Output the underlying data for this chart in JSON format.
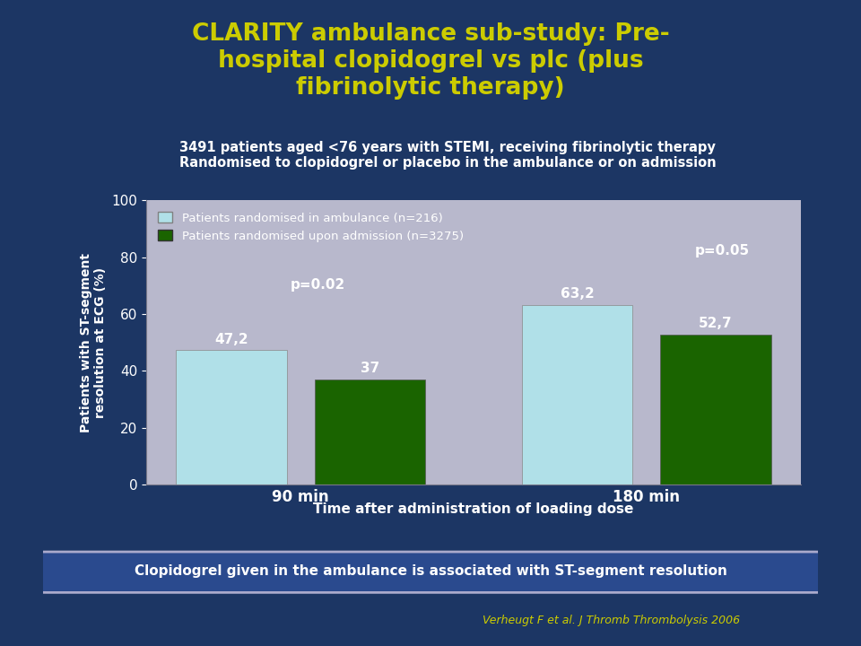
{
  "title_line1": "CLARITY ambulance sub-study: Pre-",
  "title_line2": "hospital clopidogrel vs plc (plus",
  "title_line3": "fibrinolytic therapy)",
  "title_color": "#CCCC00",
  "subtitle_line1": "3491 patients aged <76 years with STEMI, receiving fibrinolytic therapy",
  "subtitle_line2": "Randomised to clopidogrel or placebo in the ambulance or on admission",
  "subtitle_color": "#FFFFFF",
  "bg_color": "#1C3664",
  "plot_bg_color": "#B8B8CC",
  "categories": [
    "90 min",
    "180 min"
  ],
  "series1_label": "Patients randomised in ambulance (n=216)",
  "series1_values": [
    47.2,
    63.2
  ],
  "series1_color": "#B0E0E8",
  "series2_label": "Patients randomised upon admission (n=3275)",
  "series2_values": [
    37,
    52.7
  ],
  "series2_color": "#1A6400",
  "bar_annots_s1": [
    "47,2",
    "63,2"
  ],
  "bar_annots_s2": [
    "37",
    "52,7"
  ],
  "p_values": [
    "p=0.02",
    "p=0.05"
  ],
  "ylabel": "Patients with ST-segment\nresolution at ECG (%)",
  "xlabel": "Time after administration of loading dose",
  "ylim": [
    0,
    100
  ],
  "yticks": [
    0,
    20,
    40,
    60,
    80,
    100
  ],
  "ylabel_color": "#FFFFFF",
  "xlabel_color": "#FFFFFF",
  "tick_color": "#FFFFFF",
  "legend_text_color": "#FFFFFF",
  "footer_text": "Clopidogrel given in the ambulance is associated with ST-segment resolution",
  "footer_color": "#FFFFFF",
  "footer_bg": "#2a4a8e",
  "footer_border": "#AAAACC",
  "credit_text": "Verheugt F et al. J Thromb Thrombolysis 2006",
  "credit_color": "#CCCC00",
  "bar_width": 0.32,
  "bar_gap": 0.08
}
